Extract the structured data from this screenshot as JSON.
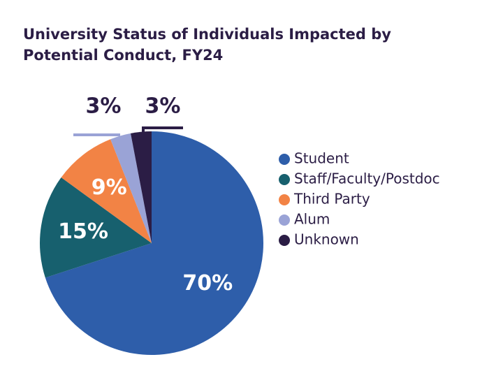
{
  "chart_data": {
    "type": "pie",
    "title": "University Status of Individuals Impacted by Potential Conduct, FY24",
    "categories": [
      "Student",
      "Staff/Faculty/Postdoc",
      "Third Party",
      "Alum",
      "Unknown"
    ],
    "values": [
      70,
      15,
      9,
      3,
      3
    ],
    "value_labels": [
      "70%",
      "15%",
      "9%",
      "3%",
      "3%"
    ],
    "colors": [
      "#2e5eaa",
      "#17606e",
      "#f28345",
      "#9aa3d6",
      "#2b1d45"
    ],
    "legend": "right"
  }
}
